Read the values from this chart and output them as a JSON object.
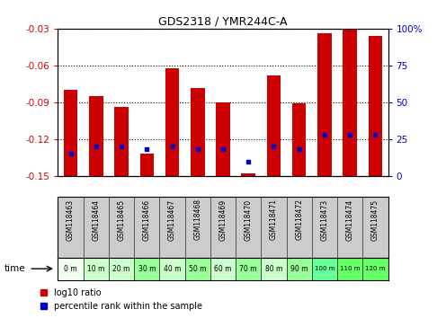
{
  "title": "GDS2318 / YMR244C-A",
  "samples": [
    "GSM118463",
    "GSM118464",
    "GSM118465",
    "GSM118466",
    "GSM118467",
    "GSM118468",
    "GSM118469",
    "GSM118470",
    "GSM118471",
    "GSM118472",
    "GSM118473",
    "GSM118474",
    "GSM118475"
  ],
  "time_labels": [
    "0 m",
    "10 m",
    "20 m",
    "30 m",
    "40 m",
    "50 m",
    "60 m",
    "70 m",
    "80 m",
    "90 m",
    "100 m",
    "110 m",
    "120 m"
  ],
  "log10_ratio": [
    -0.08,
    -0.085,
    -0.094,
    -0.132,
    -0.062,
    -0.078,
    -0.09,
    -0.148,
    -0.068,
    -0.091,
    -0.034,
    -0.031,
    -0.036
  ],
  "percentile_rank": [
    15,
    20,
    20,
    18,
    20,
    18,
    18,
    10,
    20,
    18,
    28,
    28,
    28
  ],
  "ylim_left": [
    -0.15,
    -0.03
  ],
  "ylim_right": [
    0,
    100
  ],
  "yticks_left": [
    -0.15,
    -0.12,
    -0.09,
    -0.06,
    -0.03
  ],
  "yticks_right": [
    0,
    25,
    50,
    75,
    100
  ],
  "bar_color": "#cc0000",
  "marker_color": "#0000cc",
  "bg_color_plot": "#ffffff",
  "bg_color_xlabel": "#cccccc",
  "time_row_colors": [
    "#f0fff0",
    "#ccffcc",
    "#ccffcc",
    "#99ff99",
    "#ccffcc",
    "#99ff99",
    "#ccffcc",
    "#99ff99",
    "#ccffcc",
    "#99ff99",
    "#66ff99",
    "#66ff66",
    "#66ff66"
  ],
  "left_axis_color": "#cc0000",
  "right_axis_color": "#0000cc",
  "grid_color": "#000000",
  "bar_width": 0.55
}
